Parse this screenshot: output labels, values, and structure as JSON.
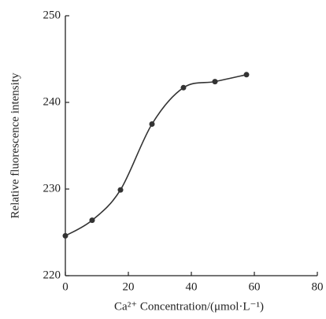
{
  "chart_data": {
    "type": "line",
    "x_label": "Ca²⁺  Concentration/(μmol·L⁻¹)",
    "y_label": "Relative fluorescence intensity",
    "x": [
      0,
      8.5,
      17.5,
      27.5,
      37.5,
      47.5,
      57.5
    ],
    "series": [
      {
        "name": "Relative fluorescence intensity",
        "color": "#333333",
        "values": [
          224.6,
          226.4,
          229.9,
          237.5,
          241.7,
          242.4,
          243.2
        ]
      }
    ],
    "xlim": [
      0,
      80
    ],
    "xticks": [
      0,
      20,
      40,
      60,
      80
    ],
    "ylim": [
      220,
      250
    ],
    "yticks": [
      220,
      230,
      240,
      250
    ],
    "smooth": true,
    "markers": true
  }
}
